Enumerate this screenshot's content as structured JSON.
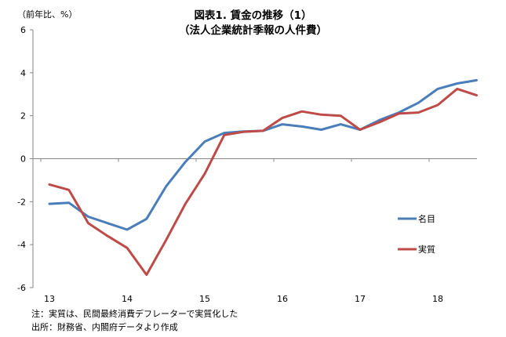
{
  "title_line1": "図表1. 賃金の推移（1）",
  "title_line2": "（法人企業統計季報の人件費）",
  "unit_label": "（前年比、%）",
  "notes": {
    "line1": "注：実質は、民間最終消費デフレーターで実質化した",
    "line2": "出所：財務省、内閣府データより作成"
  },
  "chart_data": {
    "type": "line",
    "x_tick_labels": [
      "13",
      "14",
      "15",
      "16",
      "17",
      "18"
    ],
    "x_ticks": [
      2013.0,
      2014.0,
      2015.0,
      2016.0,
      2017.0,
      2018.0
    ],
    "xlim": [
      2013.0,
      2018.5
    ],
    "ylim": [
      -6,
      6
    ],
    "y_ticks": [
      -6,
      -4,
      -2,
      0,
      2,
      4,
      6
    ],
    "grid": false,
    "legend_position": "right",
    "x": [
      2013.0,
      2013.25,
      2013.5,
      2013.75,
      2014.0,
      2014.25,
      2014.5,
      2014.75,
      2015.0,
      2015.25,
      2015.5,
      2015.75,
      2016.0,
      2016.25,
      2016.5,
      2016.75,
      2017.0,
      2017.25,
      2017.5,
      2017.75,
      2018.0,
      2018.25,
      2018.5
    ],
    "series": [
      {
        "name": "名目",
        "color": "#4a7ebb",
        "values": [
          -2.1,
          -2.05,
          -2.7,
          -3.0,
          -3.3,
          -2.8,
          -1.3,
          -0.15,
          0.8,
          1.2,
          1.27,
          1.3,
          1.6,
          1.5,
          1.35,
          1.6,
          1.35,
          1.8,
          2.15,
          2.6,
          3.25,
          3.5,
          3.65
        ]
      },
      {
        "name": "実質",
        "color": "#be4b48",
        "values": [
          -1.2,
          -1.45,
          -3.0,
          -3.6,
          -4.15,
          -5.4,
          -3.8,
          -2.1,
          -0.7,
          1.1,
          1.25,
          1.3,
          1.9,
          2.2,
          2.05,
          2.0,
          1.35,
          1.7,
          2.1,
          2.15,
          2.5,
          3.25,
          2.95
        ]
      }
    ]
  }
}
